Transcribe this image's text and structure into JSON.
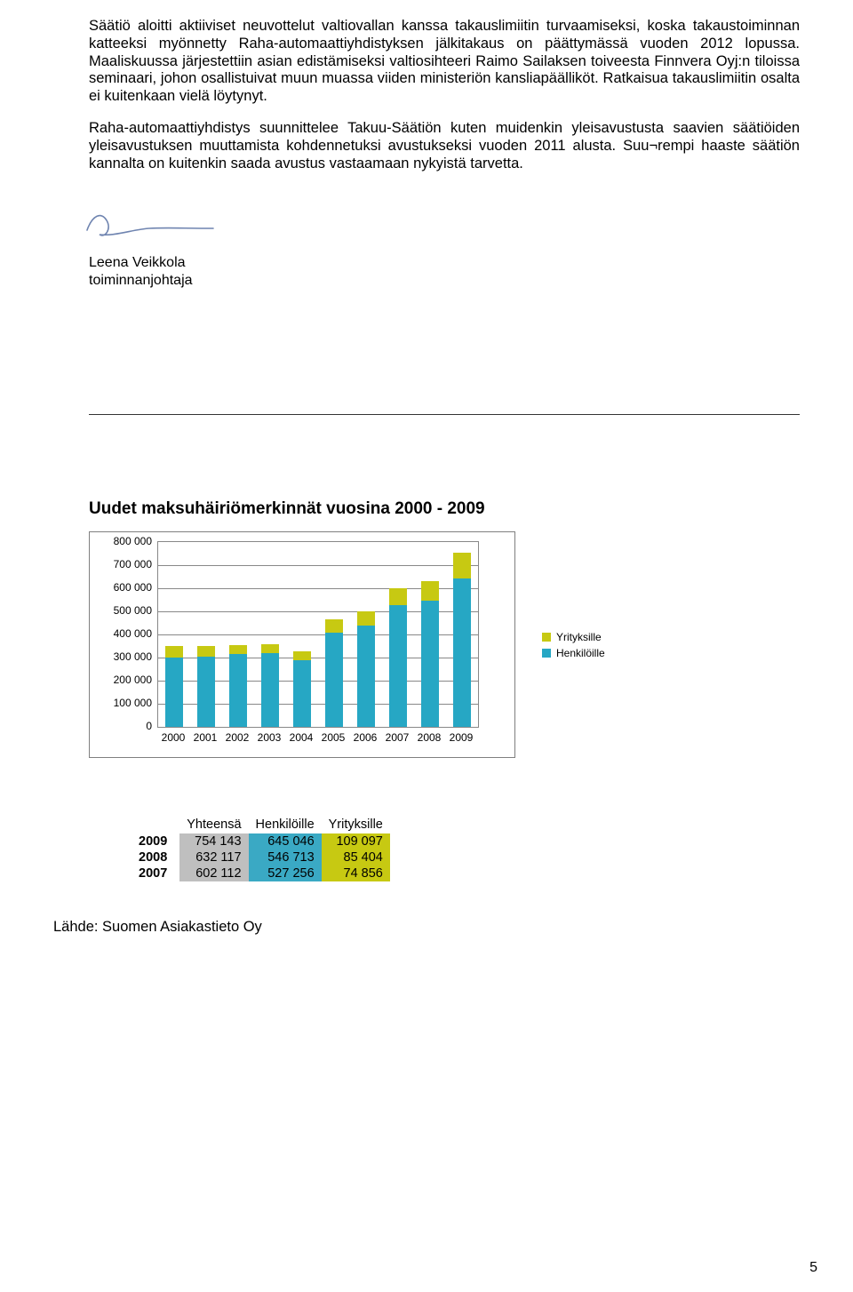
{
  "paragraphs": {
    "p1": "Säätiö aloitti aktiiviset neuvottelut valtiovallan kanssa takauslimiitin turvaamiseksi, koska takaustoiminnan katteeksi myönnetty Raha-automaattiyhdistyksen jälkitakaus on päättymässä vuoden 2012 lopussa. Maaliskuussa järjestettiin asian edistämiseksi valtiosihteeri Raimo Sailaksen toiveesta Finnvera Oyj:n tiloissa seminaari, johon osallistuivat muun muassa viiden ministeriön kansliapäälliköt. Ratkaisua takauslimiitin osalta ei kuitenkaan vielä löytynyt.",
    "p2": "Raha-automaattiyhdistys suunnittelee Takuu-Säätiön kuten muidenkin yleisavustusta saavien säätiöiden yleisavustuksen muuttamista kohdennetuksi avustukseksi vuoden 2011 alusta. Suu¬rempi haaste säätiön kannalta on kuitenkin saada avustus vastaamaan nykyistä tarvetta."
  },
  "signature": {
    "name": "Leena Veikkola",
    "title": "toiminnanjohtaja"
  },
  "chart": {
    "title": "Uudet maksuhäiriömerkinnät vuosina 2000 - 2009",
    "ylabels": [
      "800 000",
      "700 000",
      "600 000",
      "500 000",
      "400 000",
      "300 000",
      "200 000",
      "100 000",
      "0"
    ],
    "ymax": 800000,
    "categories": [
      "2000",
      "2001",
      "2002",
      "2003",
      "2004",
      "2005",
      "2006",
      "2007",
      "2008",
      "2009"
    ],
    "henk": [
      300000,
      305000,
      315000,
      320000,
      290000,
      410000,
      440000,
      527256,
      546713,
      645046
    ],
    "yrit": [
      50000,
      45000,
      42000,
      40000,
      38000,
      55000,
      62000,
      74856,
      85404,
      109097
    ],
    "colors": {
      "henk": "#26a7c4",
      "yrit": "#c7c912",
      "grid": "#888888",
      "border": "#7f7f7f"
    },
    "legend": {
      "yrit": "Yrityksille",
      "henk": "Henkilöille"
    }
  },
  "table": {
    "headers": [
      "",
      "Yhteensä",
      "Henkilöille",
      "Yrityksille"
    ],
    "rows": [
      {
        "year": "2009",
        "tot": "754 143",
        "henk": "645 046",
        "yrit": "109 097"
      },
      {
        "year": "2008",
        "tot": "632 117",
        "henk": "546 713",
        "yrit": "85 404"
      },
      {
        "year": "2007",
        "tot": "602 112",
        "henk": "527 256",
        "yrit": "74 856"
      }
    ]
  },
  "source": "Lähde: Suomen Asiakastieto Oy",
  "pagenum": "5"
}
